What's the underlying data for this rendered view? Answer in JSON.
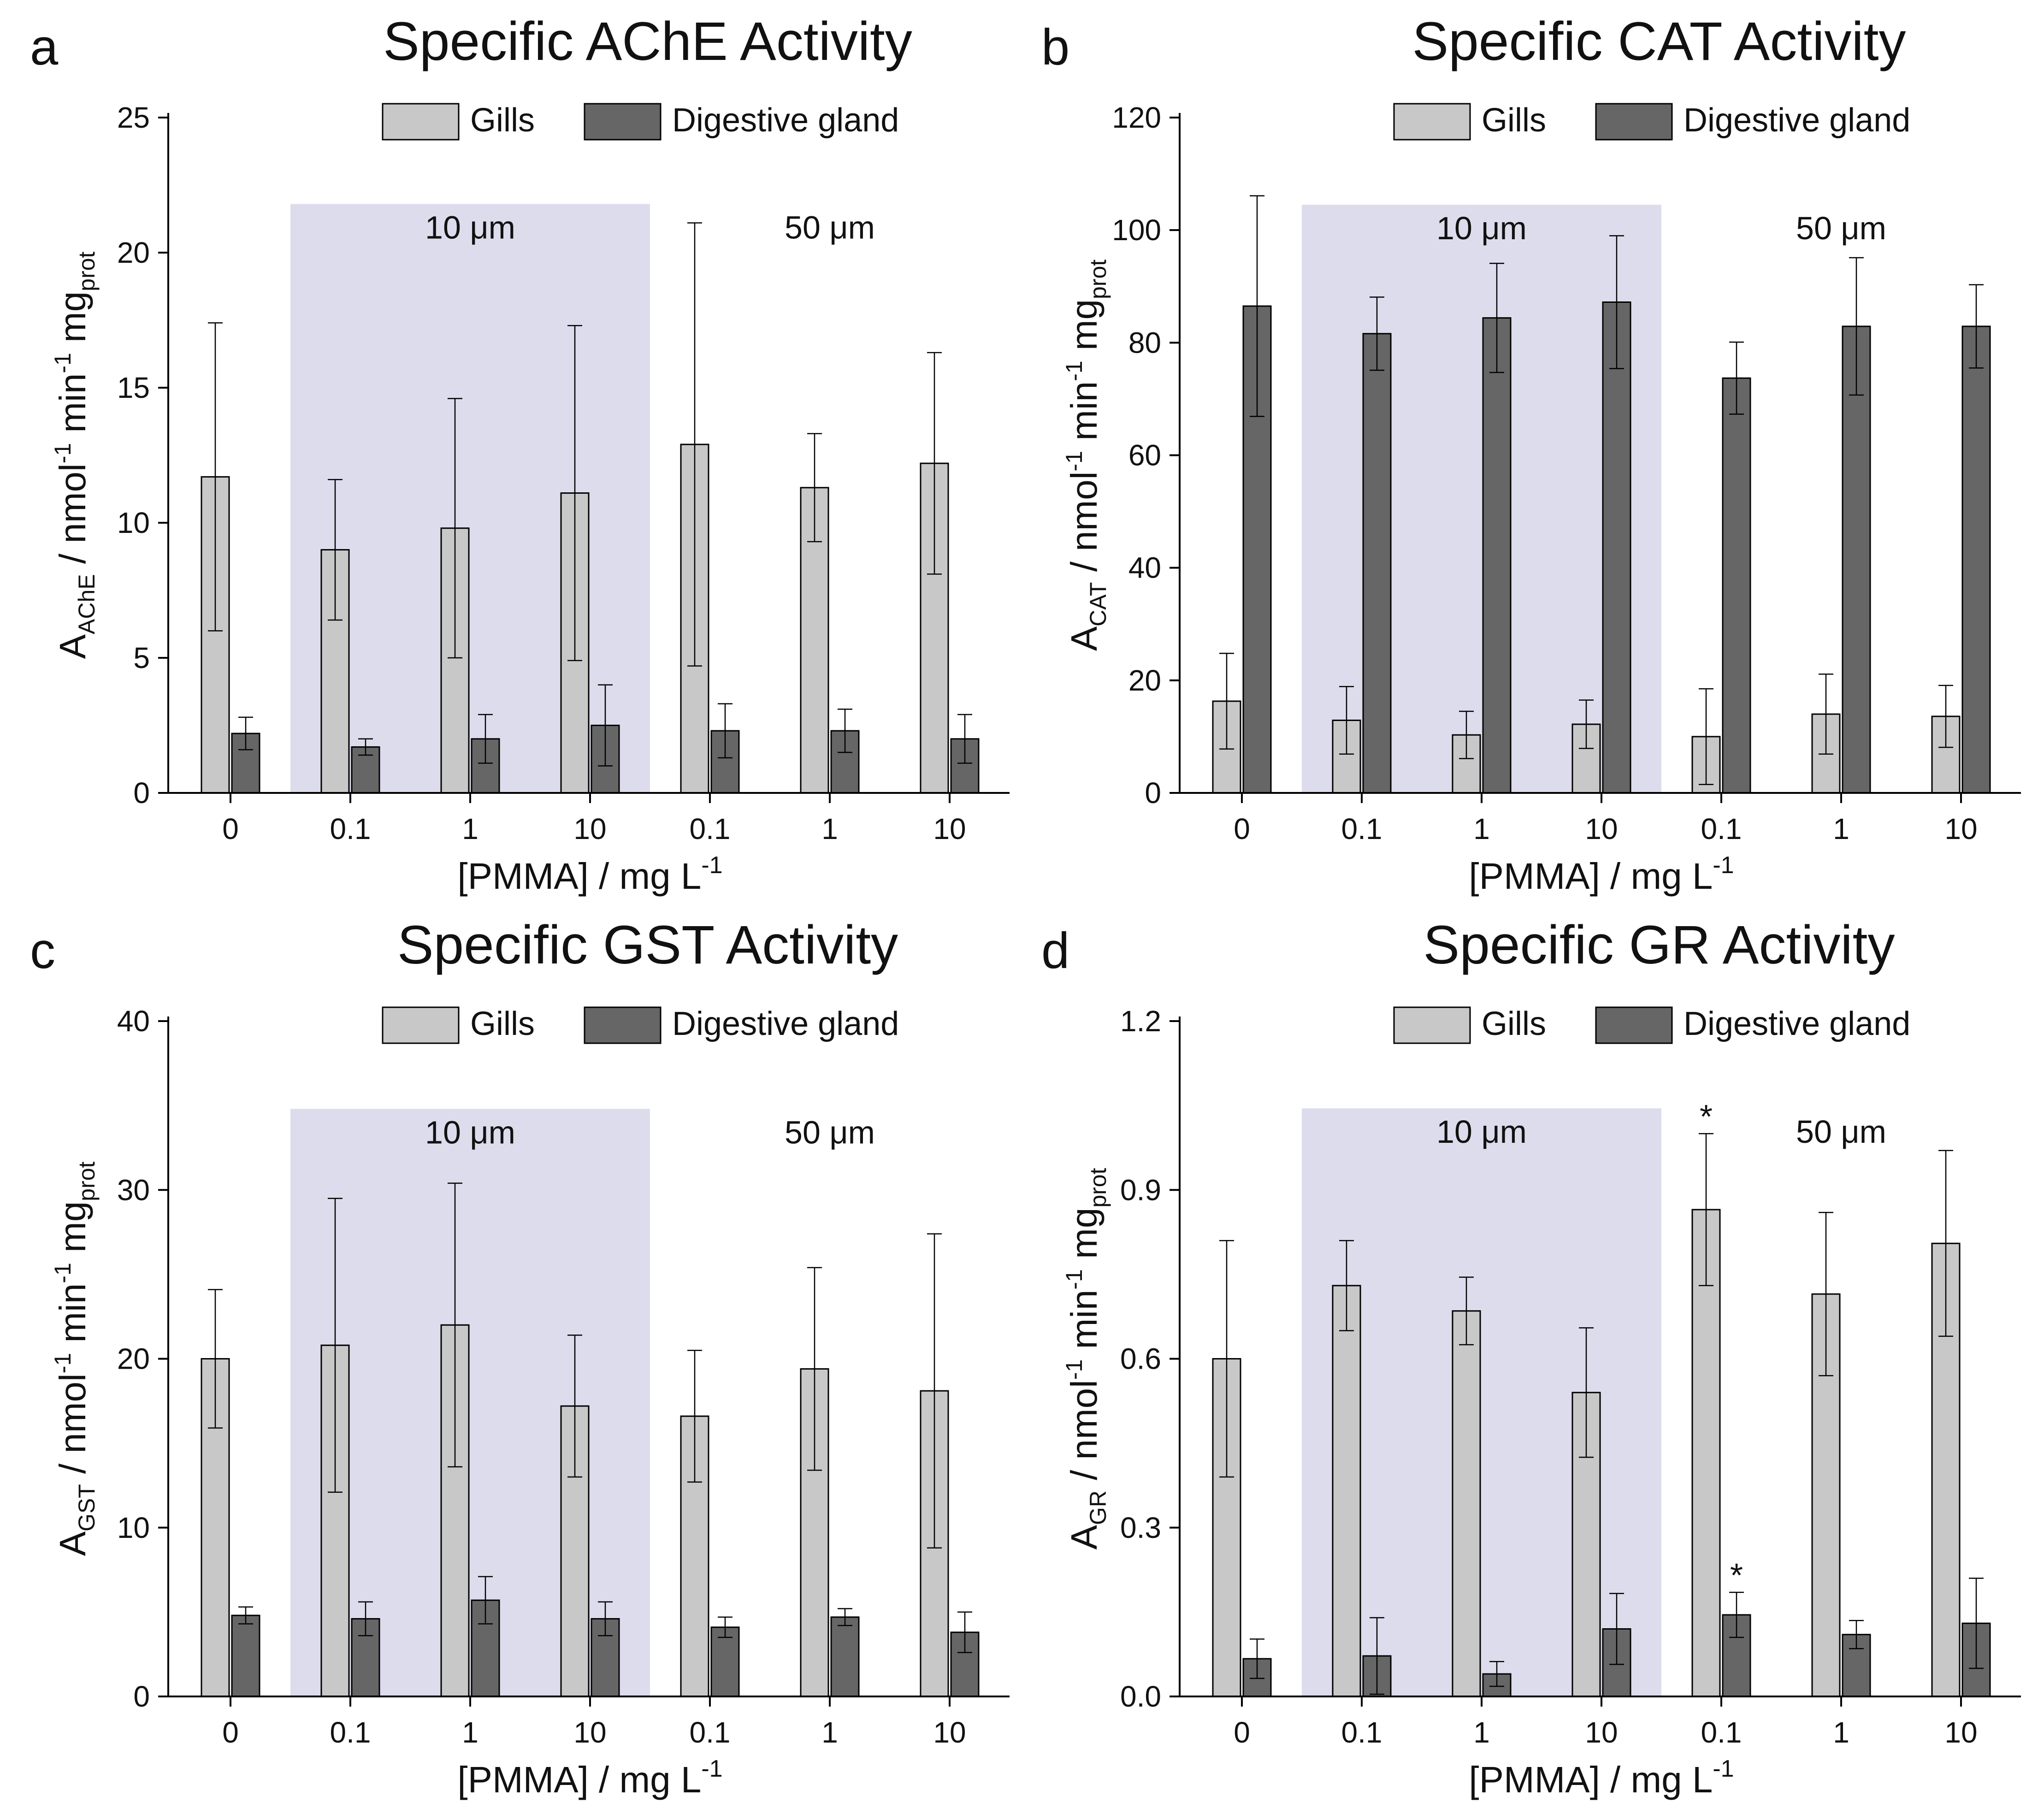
{
  "figure": {
    "colors": {
      "gills": "#c8c8c8",
      "digestive": "#666666",
      "shade": "#dcdcec",
      "axis": "#000000"
    }
  },
  "chart_data": [
    {
      "type": "bar",
      "panel_label": "a",
      "title": "Specific AChE Activity",
      "xlabel": {
        "main": "[PMMA] / mg L",
        "sup": "-1"
      },
      "ylabel": {
        "A": "A",
        "sub": "AChE",
        "mid": " / nmol",
        "sup1": "-1",
        "min": " min",
        "sup2": "-1",
        "mg": " mg",
        "prot": "prot"
      },
      "categories": [
        "0",
        "0.1",
        "1",
        "10",
        "0.1",
        "1",
        "10"
      ],
      "groups": [
        {
          "label": "10 μm",
          "start": 1,
          "end": 3,
          "shaded": true
        },
        {
          "label": "50 μm",
          "start": 4,
          "end": 6,
          "shaded": false
        }
      ],
      "series": [
        {
          "name": "Gills",
          "values": [
            11.7,
            9.0,
            9.8,
            11.1,
            12.9,
            11.3,
            12.2
          ],
          "errors": [
            5.7,
            2.6,
            4.8,
            6.2,
            8.2,
            2.0,
            4.1
          ],
          "stars": []
        },
        {
          "name": "Digestive gland",
          "values": [
            2.2,
            1.7,
            2.0,
            2.5,
            2.3,
            2.3,
            2.0
          ],
          "errors": [
            0.6,
            0.3,
            0.9,
            1.5,
            1.0,
            0.8,
            0.9
          ],
          "stars": []
        }
      ],
      "ylim": [
        0,
        25
      ],
      "yticks": [
        0,
        5,
        10,
        15,
        20,
        25
      ],
      "ytick_labels": [
        "0",
        "5",
        "10",
        "15",
        "20",
        "25"
      ],
      "group_band_top": 21.8,
      "legend": "top-center"
    },
    {
      "type": "bar",
      "panel_label": "b",
      "title": "Specific CAT Activity",
      "xlabel": {
        "main": "[PMMA] / mg L",
        "sup": "-1"
      },
      "ylabel": {
        "A": "A",
        "sub": "CAT",
        "mid": " / nmol",
        "sup1": "-1",
        "min": " min",
        "sup2": "-1",
        "mg": " mg",
        "prot": "prot"
      },
      "categories": [
        "0",
        "0.1",
        "1",
        "10",
        "0.1",
        "1",
        "10"
      ],
      "groups": [
        {
          "label": "10 μm",
          "start": 1,
          "end": 3,
          "shaded": true
        },
        {
          "label": "50 μm",
          "start": 4,
          "end": 6,
          "shaded": false
        }
      ],
      "series": [
        {
          "name": "Gills",
          "values": [
            16.3,
            12.9,
            10.3,
            12.2,
            10.0,
            14.0,
            13.6
          ],
          "errors": [
            8.5,
            6.0,
            4.2,
            4.3,
            8.5,
            7.1,
            5.5
          ],
          "stars": []
        },
        {
          "name": "Digestive gland",
          "values": [
            86.5,
            81.6,
            84.4,
            87.2,
            73.7,
            82.9,
            82.9
          ],
          "errors": [
            19.6,
            6.5,
            9.7,
            11.8,
            6.4,
            12.2,
            7.4
          ],
          "stars": []
        }
      ],
      "ylim": [
        0,
        120
      ],
      "yticks": [
        0,
        20,
        40,
        60,
        80,
        100,
        120
      ],
      "ytick_labels": [
        "0",
        "20",
        "40",
        "60",
        "80",
        "100",
        "120"
      ],
      "group_band_top": 104.5,
      "legend": "top-center"
    },
    {
      "type": "bar",
      "panel_label": "c",
      "title": "Specific GST Activity",
      "xlabel": {
        "main": "[PMMA] / mg L",
        "sup": "-1"
      },
      "ylabel": {
        "A": "A",
        "sub": "GST",
        "mid": " / nmol",
        "sup1": "-1",
        "min": " min",
        "sup2": "-1",
        "mg": " mg",
        "prot": "prot"
      },
      "categories": [
        "0",
        "0.1",
        "1",
        "10",
        "0.1",
        "1",
        "10"
      ],
      "groups": [
        {
          "label": "10 μm",
          "start": 1,
          "end": 3,
          "shaded": true
        },
        {
          "label": "50 μm",
          "start": 4,
          "end": 6,
          "shaded": false
        }
      ],
      "series": [
        {
          "name": "Gills",
          "values": [
            20.0,
            20.8,
            22.0,
            17.2,
            16.6,
            19.4,
            18.1
          ],
          "errors": [
            4.1,
            8.7,
            8.4,
            4.2,
            3.9,
            6.0,
            9.3
          ],
          "stars": []
        },
        {
          "name": "Digestive gland",
          "values": [
            4.8,
            4.6,
            5.7,
            4.6,
            4.1,
            4.7,
            3.8
          ],
          "errors": [
            0.5,
            1.0,
            1.4,
            1.0,
            0.6,
            0.5,
            1.2
          ],
          "stars": []
        }
      ],
      "ylim": [
        0,
        40
      ],
      "yticks": [
        0,
        10,
        20,
        30,
        40
      ],
      "ytick_labels": [
        "0",
        "10",
        "20",
        "30",
        "40"
      ],
      "group_band_top": 34.8,
      "legend": "top-center"
    },
    {
      "type": "bar",
      "panel_label": "d",
      "title": "Specific GR Activity",
      "xlabel": {
        "main": "[PMMA] / mg L",
        "sup": "-1"
      },
      "ylabel": {
        "A": "A",
        "sub": "GR",
        "mid": " / nmol",
        "sup1": "-1",
        "min": " min",
        "sup2": "-1",
        "mg": " mg",
        "prot": "prot"
      },
      "categories": [
        "0",
        "0.1",
        "1",
        "10",
        "0.1",
        "1",
        "10"
      ],
      "groups": [
        {
          "label": "10 μm",
          "start": 1,
          "end": 3,
          "shaded": true
        },
        {
          "label": "50 μm",
          "start": 4,
          "end": 6,
          "shaded": false
        }
      ],
      "series": [
        {
          "name": "Gills",
          "values": [
            0.6,
            0.73,
            0.685,
            0.54,
            0.865,
            0.715,
            0.805
          ],
          "errors": [
            0.21,
            0.08,
            0.06,
            0.115,
            0.135,
            0.145,
            0.165
          ],
          "stars": [
            4
          ]
        },
        {
          "name": "Digestive gland",
          "values": [
            0.067,
            0.072,
            0.04,
            0.12,
            0.145,
            0.11,
            0.13
          ],
          "errors": [
            0.035,
            0.068,
            0.022,
            0.063,
            0.04,
            0.025,
            0.08
          ],
          "stars": [
            4
          ]
        }
      ],
      "ylim": [
        0,
        1.2
      ],
      "yticks": [
        0,
        0.3,
        0.6,
        0.9,
        1.2
      ],
      "ytick_labels": [
        "0.0",
        "0.3",
        "0.6",
        "0.9",
        "1.2"
      ],
      "group_band_top": 1.045,
      "star_symbol": "*",
      "legend": "top-center"
    }
  ]
}
